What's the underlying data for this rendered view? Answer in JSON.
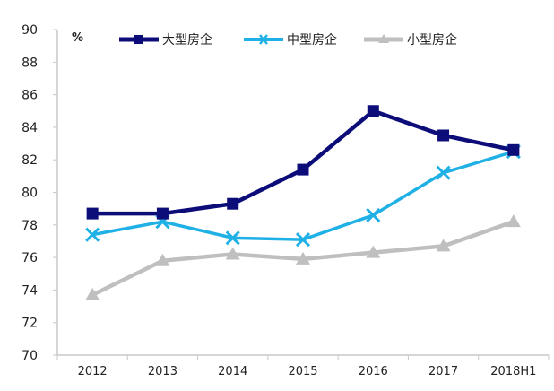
{
  "chart_data": {
    "type": "line",
    "title": "",
    "xlabel": "",
    "ylabel": "%",
    "ylim": [
      70,
      90
    ],
    "yticks": [
      70,
      72,
      74,
      76,
      78,
      80,
      82,
      84,
      86,
      88,
      90
    ],
    "grid": false,
    "legend_position": "top",
    "categories": [
      "2012",
      "2013",
      "2014",
      "2015",
      "2016",
      "2017",
      "2018H1"
    ],
    "series": [
      {
        "name": "大型房企",
        "color": "#0d0d7a",
        "marker": "square",
        "values": [
          78.7,
          78.7,
          79.3,
          81.4,
          85.0,
          83.5,
          82.6
        ]
      },
      {
        "name": "中型房企",
        "color": "#1fb0e6",
        "marker": "x",
        "values": [
          77.4,
          78.2,
          77.2,
          77.1,
          78.6,
          81.2,
          82.5
        ]
      },
      {
        "name": "小型房企",
        "color": "#bfbfbf",
        "marker": "triangle",
        "values": [
          73.7,
          75.8,
          76.2,
          75.9,
          76.3,
          76.7,
          78.2
        ]
      }
    ]
  },
  "unit_label": "%"
}
